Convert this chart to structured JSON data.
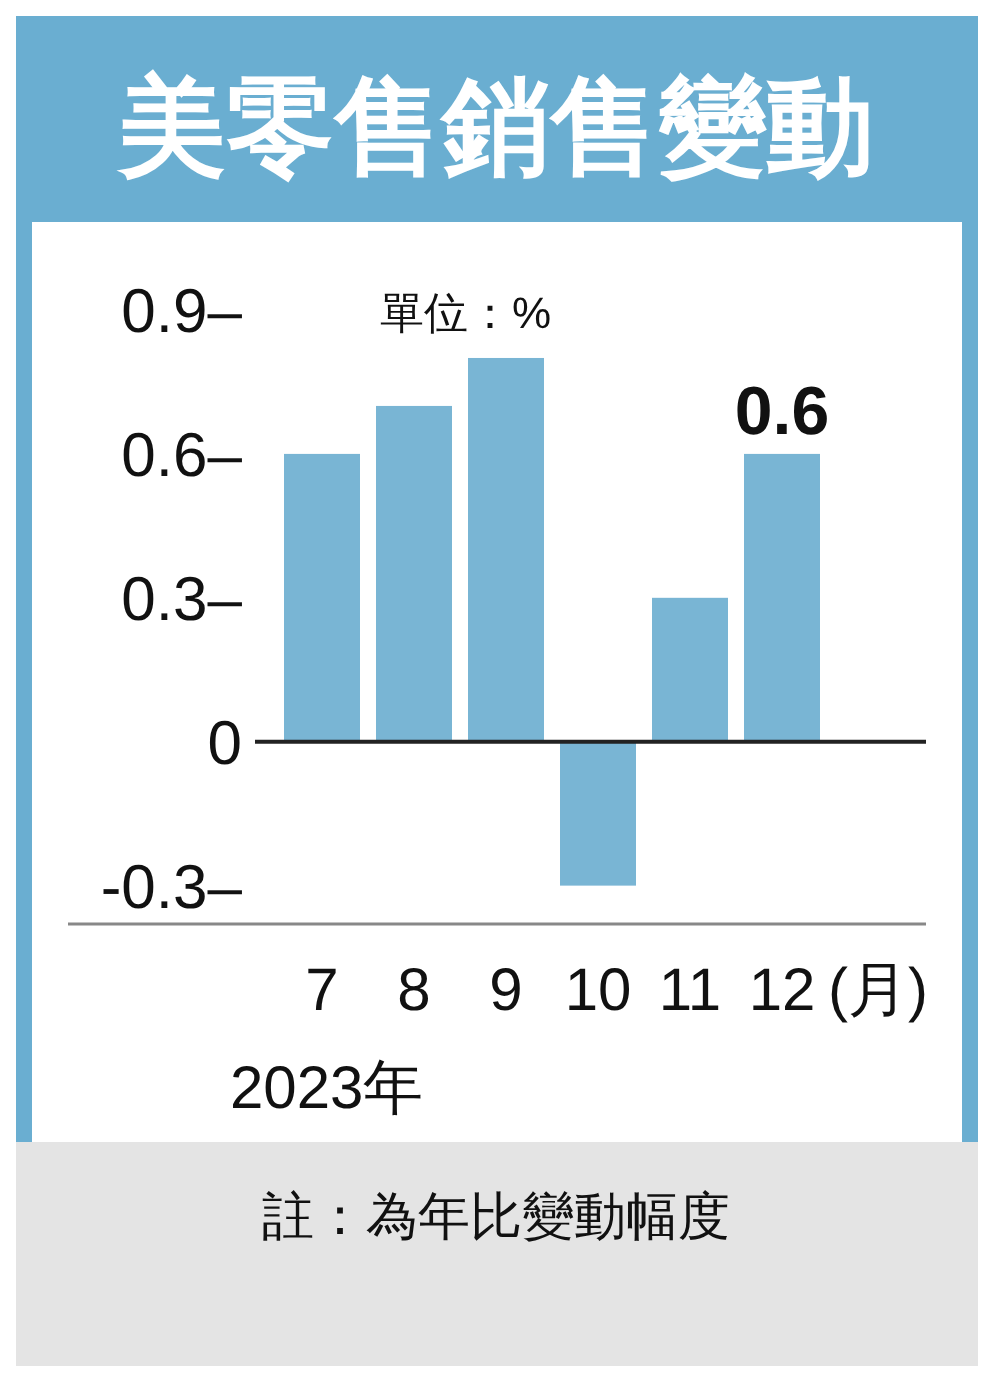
{
  "chart_data": {
    "type": "bar",
    "title": "美零售銷售變動",
    "annotations": [
      "單位：%",
      "(月)",
      "2023年",
      "註：為年比變動幅度"
    ],
    "categories": [
      "7",
      "8",
      "9",
      "10",
      "11",
      "12"
    ],
    "values": [
      0.6,
      0.7,
      0.8,
      -0.3,
      0.3,
      0.6
    ],
    "value_labels": [
      null,
      null,
      null,
      null,
      null,
      "0.6"
    ],
    "color": "#79b5d4",
    "ylim": [
      -0.38,
      0.9
    ],
    "yticks": [
      {
        "value": 0.9,
        "label": "0.9–"
      },
      {
        "value": 0.6,
        "label": "0.6–"
      },
      {
        "value": 0.3,
        "label": "0.3–"
      },
      {
        "value": 0,
        "label": "0"
      },
      {
        "value": -0.3,
        "label": "-0.3–"
      }
    ]
  }
}
